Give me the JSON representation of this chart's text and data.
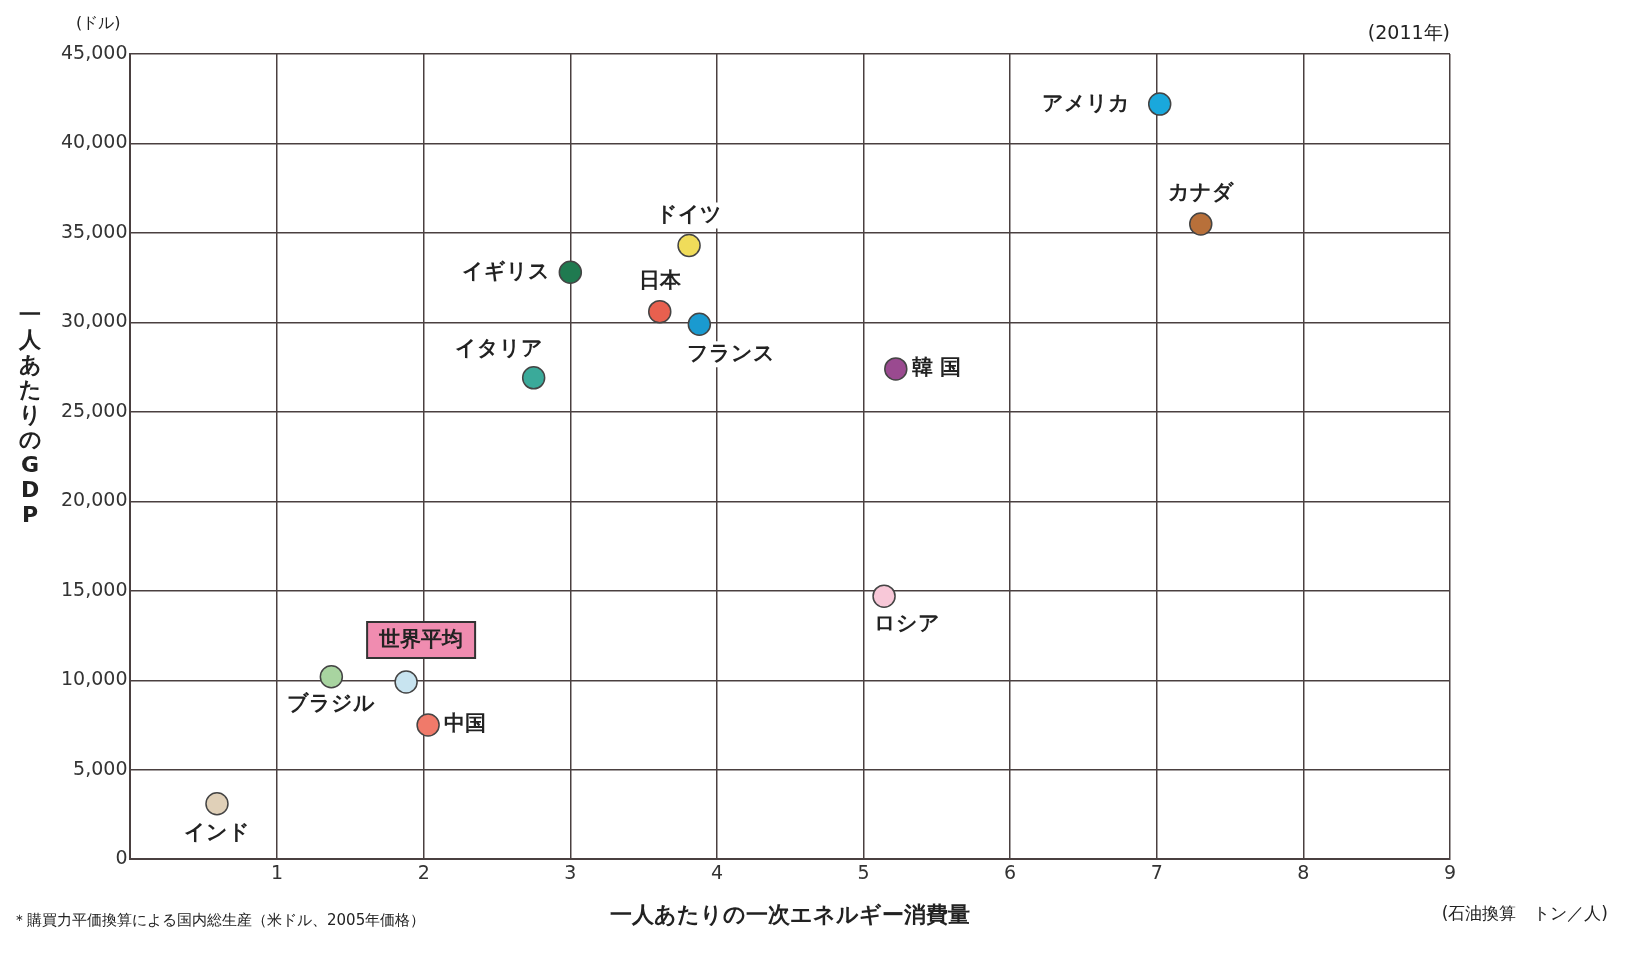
{
  "chart_data": {
    "type": "scatter",
    "xlabel": "一人あたりの一次エネルギー消費量",
    "ylabel": "一人あたりのGDP",
    "x": [
      7.02,
      7.3,
      3.81,
      3.0,
      3.61,
      3.88,
      2.75,
      5.22,
      5.14,
      1.88,
      1.37,
      2.03,
      0.59
    ],
    "values": [
      42200,
      35500,
      34300,
      32800,
      30600,
      29900,
      26900,
      27400,
      14700,
      9900,
      10200,
      7500,
      3100
    ],
    "colors": [
      "#1aa8dc",
      "#b8703a",
      "#f0dc5a",
      "#1f7a50",
      "#e8604f",
      "#1a9ad0",
      "#3aaa9a",
      "#9a4a90",
      "#f8c8d8",
      "#c8e4f0",
      "#a8d4a0",
      "#f07a6a",
      "#e0d0b8"
    ],
    "xlim": [
      0,
      9
    ],
    "xticks": [
      1,
      2,
      3,
      4,
      5,
      6,
      7,
      8,
      9
    ],
    "ylim": [
      0,
      45000
    ],
    "yticks": [
      {
        "value": 0,
        "label": "0"
      },
      {
        "value": 5000,
        "label": "5,000"
      },
      {
        "value": 10000,
        "label": "10,000"
      },
      {
        "value": 15000,
        "label": "15,000"
      },
      {
        "value": 20000,
        "label": "20,000"
      },
      {
        "value": 25000,
        "label": "25,000"
      },
      {
        "value": 30000,
        "label": "30,000"
      },
      {
        "value": 35000,
        "label": "35,000"
      },
      {
        "value": 40000,
        "label": "40,000"
      },
      {
        "value": 45000,
        "label": "45,000"
      }
    ],
    "grid": true,
    "marker": "circle",
    "annotations": [
      {
        "text": "アメリカ",
        "x": 7.02,
        "y": 42200
      },
      {
        "text": "カナダ",
        "x": 7.3,
        "y": 35500
      },
      {
        "text": "ドイツ",
        "x": 3.81,
        "y": 34300
      },
      {
        "text": "イギリス",
        "x": 3.0,
        "y": 32800
      },
      {
        "text": "日本",
        "x": 3.61,
        "y": 30600
      },
      {
        "text": "フランス",
        "x": 3.88,
        "y": 29900
      },
      {
        "text": "イタリア",
        "x": 2.75,
        "y": 26900
      },
      {
        "text": "韓 国",
        "x": 5.22,
        "y": 27400
      },
      {
        "text": "ロシア",
        "x": 5.14,
        "y": 14700
      },
      {
        "text": "世界平均",
        "x": 1.88,
        "y": 9900
      },
      {
        "text": "ブラジル",
        "x": 1.37,
        "y": 10200
      },
      {
        "text": "中国",
        "x": 2.03,
        "y": 7500
      },
      {
        "text": "インド",
        "x": 0.59,
        "y": 3100
      },
      "(ドル)",
      "(2011年)",
      "(石油換算　トン／人)",
      "＊購買力平価換算による国内総生産（米ドル、2005年価格）"
    ]
  }
}
